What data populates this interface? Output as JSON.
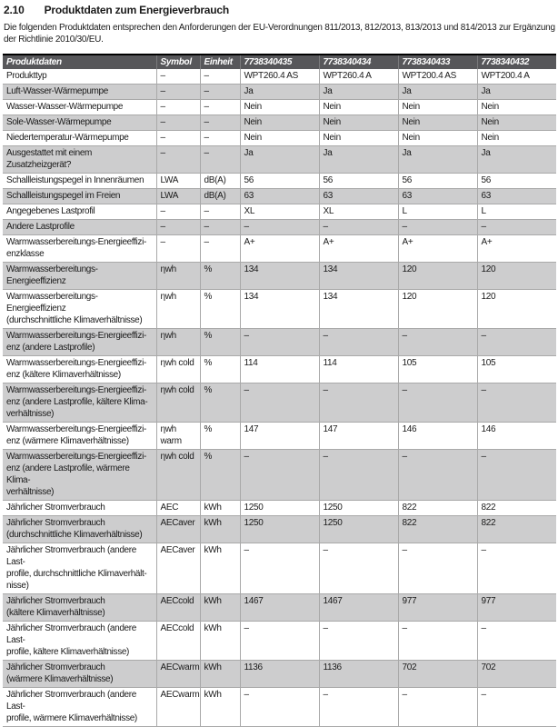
{
  "colors": {
    "header_bg": "#57575a",
    "header_text": "#ffffff",
    "row_alt_bg": "#cdcdce",
    "border": "#a9a9a9",
    "text": "#1a1a1a",
    "table_top_border": "#000000"
  },
  "section": {
    "number": "2.10",
    "title": "Produktdaten zum Energieverbrauch"
  },
  "intro": "Die folgenden Produktdaten entsprechen den Anforderungen der EU-Verordnungen 811/2013, 812/2013, 813/2013 und 814/2013 zur Ergänzung der Richtlinie 2010/30/EU.",
  "table": {
    "columns": [
      "Produktdaten",
      "Symbol",
      "Einheit",
      "7738340435",
      "7738340434",
      "7738340433",
      "7738340432"
    ],
    "rows": [
      {
        "label": "Produkttyp",
        "symbol": "–",
        "unit": "–",
        "values": [
          "WPT260.4 AS",
          "WPT260.4 A",
          "WPT200.4 AS",
          "WPT200.4 A"
        ]
      },
      {
        "label": "Luft-Wasser-Wärmepumpe",
        "symbol": "–",
        "unit": "–",
        "values": [
          "Ja",
          "Ja",
          "Ja",
          "Ja"
        ]
      },
      {
        "label": "Wasser-Wasser-Wärmepumpe",
        "symbol": "–",
        "unit": "–",
        "values": [
          "Nein",
          "Nein",
          "Nein",
          "Nein"
        ]
      },
      {
        "label": "Sole-Wasser-Wärmepumpe",
        "symbol": "–",
        "unit": "–",
        "values": [
          "Nein",
          "Nein",
          "Nein",
          "Nein"
        ]
      },
      {
        "label": "Niedertemperatur-Wärmepumpe",
        "symbol": "–",
        "unit": "–",
        "values": [
          "Nein",
          "Nein",
          "Nein",
          "Nein"
        ]
      },
      {
        "label": "Ausgestattet mit einem Zusatzheizgerät?",
        "symbol": "–",
        "unit": "–",
        "values": [
          "Ja",
          "Ja",
          "Ja",
          "Ja"
        ]
      },
      {
        "label": "Schallleistungspegel in Innenräumen",
        "symbol": "LWA",
        "unit": "dB(A)",
        "values": [
          "56",
          "56",
          "56",
          "56"
        ]
      },
      {
        "label": "Schallleistungspegel im Freien",
        "symbol": "LWA",
        "unit": "dB(A)",
        "values": [
          "63",
          "63",
          "63",
          "63"
        ]
      },
      {
        "label": "Angegebenes Lastprofil",
        "symbol": "–",
        "unit": "–",
        "values": [
          "XL",
          "XL",
          "L",
          "L"
        ]
      },
      {
        "label": "Andere Lastprofile",
        "symbol": "–",
        "unit": "–",
        "values": [
          "–",
          "–",
          "–",
          "–"
        ]
      },
      {
        "label": "Warmwasserbereitungs-Energieeffizi-\nenzklasse",
        "symbol": "–",
        "unit": "–",
        "values": [
          "A+",
          "A+",
          "A+",
          "A+"
        ]
      },
      {
        "label": "Warmwasserbereitungs-Energieeffizienz",
        "symbol": "ηwh",
        "unit": "%",
        "values": [
          "134",
          "134",
          "120",
          "120"
        ]
      },
      {
        "label": "Warmwasserbereitungs-Energieeffizienz\n(durchschnittliche Klimaverhältnisse)",
        "symbol": "ηwh",
        "unit": "%",
        "values": [
          "134",
          "134",
          "120",
          "120"
        ]
      },
      {
        "label": "Warmwasserbereitungs-Energieeffizi-\nenz (andere Lastprofile)",
        "symbol": "ηwh",
        "unit": "%",
        "values": [
          "–",
          "–",
          "–",
          "–"
        ]
      },
      {
        "label": "Warmwasserbereitungs-Energieeffizi-\nenz (kältere Klimaverhältnisse)",
        "symbol": "ηwh cold",
        "unit": "%",
        "values": [
          "114",
          "114",
          "105",
          "105"
        ]
      },
      {
        "label": "Warmwasserbereitungs-Energieeffizi-\nenz (andere Lastprofile, kältere Klima-\nverhältnisse)",
        "symbol": "ηwh cold",
        "unit": "%",
        "values": [
          "–",
          "–",
          "–",
          "–"
        ]
      },
      {
        "label": "Warmwasserbereitungs-Energieeffizi-\nenz (wärmere Klimaverhältnisse)",
        "symbol": "ηwh warm",
        "unit": "%",
        "values": [
          "147",
          "147",
          "146",
          "146"
        ]
      },
      {
        "label": "Warmwasserbereitungs-Energieeffizi-\nenz (andere Lastprofile, wärmere Klima-\nverhältnisse)",
        "symbol": "ηwh cold",
        "unit": "%",
        "values": [
          "–",
          "–",
          "–",
          "–"
        ]
      },
      {
        "label": "Jährlicher Stromverbrauch",
        "symbol": "AEC",
        "unit": "kWh",
        "values": [
          "1250",
          "1250",
          "822",
          "822"
        ]
      },
      {
        "label": "Jährlicher Stromverbrauch\n(durchschnittliche Klimaverhältnisse)",
        "symbol": "AECaver",
        "unit": "kWh",
        "values": [
          "1250",
          "1250",
          "822",
          "822"
        ]
      },
      {
        "label": "Jährlicher Stromverbrauch (andere Last-\nprofile, durchschnittliche Klimaverhält-\nnisse)",
        "symbol": "AECaver",
        "unit": "kWh",
        "values": [
          "–",
          "–",
          "–",
          "–"
        ]
      },
      {
        "label": "Jährlicher Stromverbrauch\n(kältere Klimaverhältnisse)",
        "symbol": "AECcold",
        "unit": "kWh",
        "values": [
          "1467",
          "1467",
          "977",
          "977"
        ]
      },
      {
        "label": "Jährlicher Stromverbrauch (andere Last-\nprofile, kältere Klimaverhältnisse)",
        "symbol": "AECcold",
        "unit": "kWh",
        "values": [
          "–",
          "–",
          "–",
          "–"
        ]
      },
      {
        "label": "Jährlicher Stromverbrauch\n(wärmere Klimaverhältnisse)",
        "symbol": "AECwarm",
        "unit": "kWh",
        "values": [
          "1136",
          "1136",
          "702",
          "702"
        ]
      },
      {
        "label": "Jährlicher Stromverbrauch (andere Last-\nprofile, wärmere Klimaverhältnisse)",
        "symbol": "AECwarm",
        "unit": "kWh",
        "values": [
          "–",
          "–",
          "–",
          "–"
        ]
      }
    ]
  }
}
